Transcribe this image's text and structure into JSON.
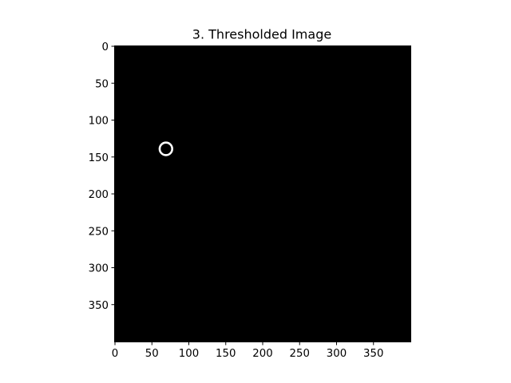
{
  "chart_data": {
    "type": "image",
    "title": "3. Thresholded Image",
    "xlabel": "",
    "ylabel": "",
    "xlim": [
      0,
      400
    ],
    "ylim": [
      400,
      0
    ],
    "xticks": [
      0,
      50,
      100,
      150,
      200,
      250,
      300,
      350
    ],
    "yticks": [
      0,
      50,
      100,
      150,
      200,
      250,
      300,
      350
    ],
    "image": {
      "width": 400,
      "height": 400,
      "background_color": "#000000",
      "foreground_color": "#ffffff",
      "features": [
        {
          "shape": "ring",
          "cx": 69,
          "cy": 139,
          "r": 8.5
        }
      ]
    }
  }
}
